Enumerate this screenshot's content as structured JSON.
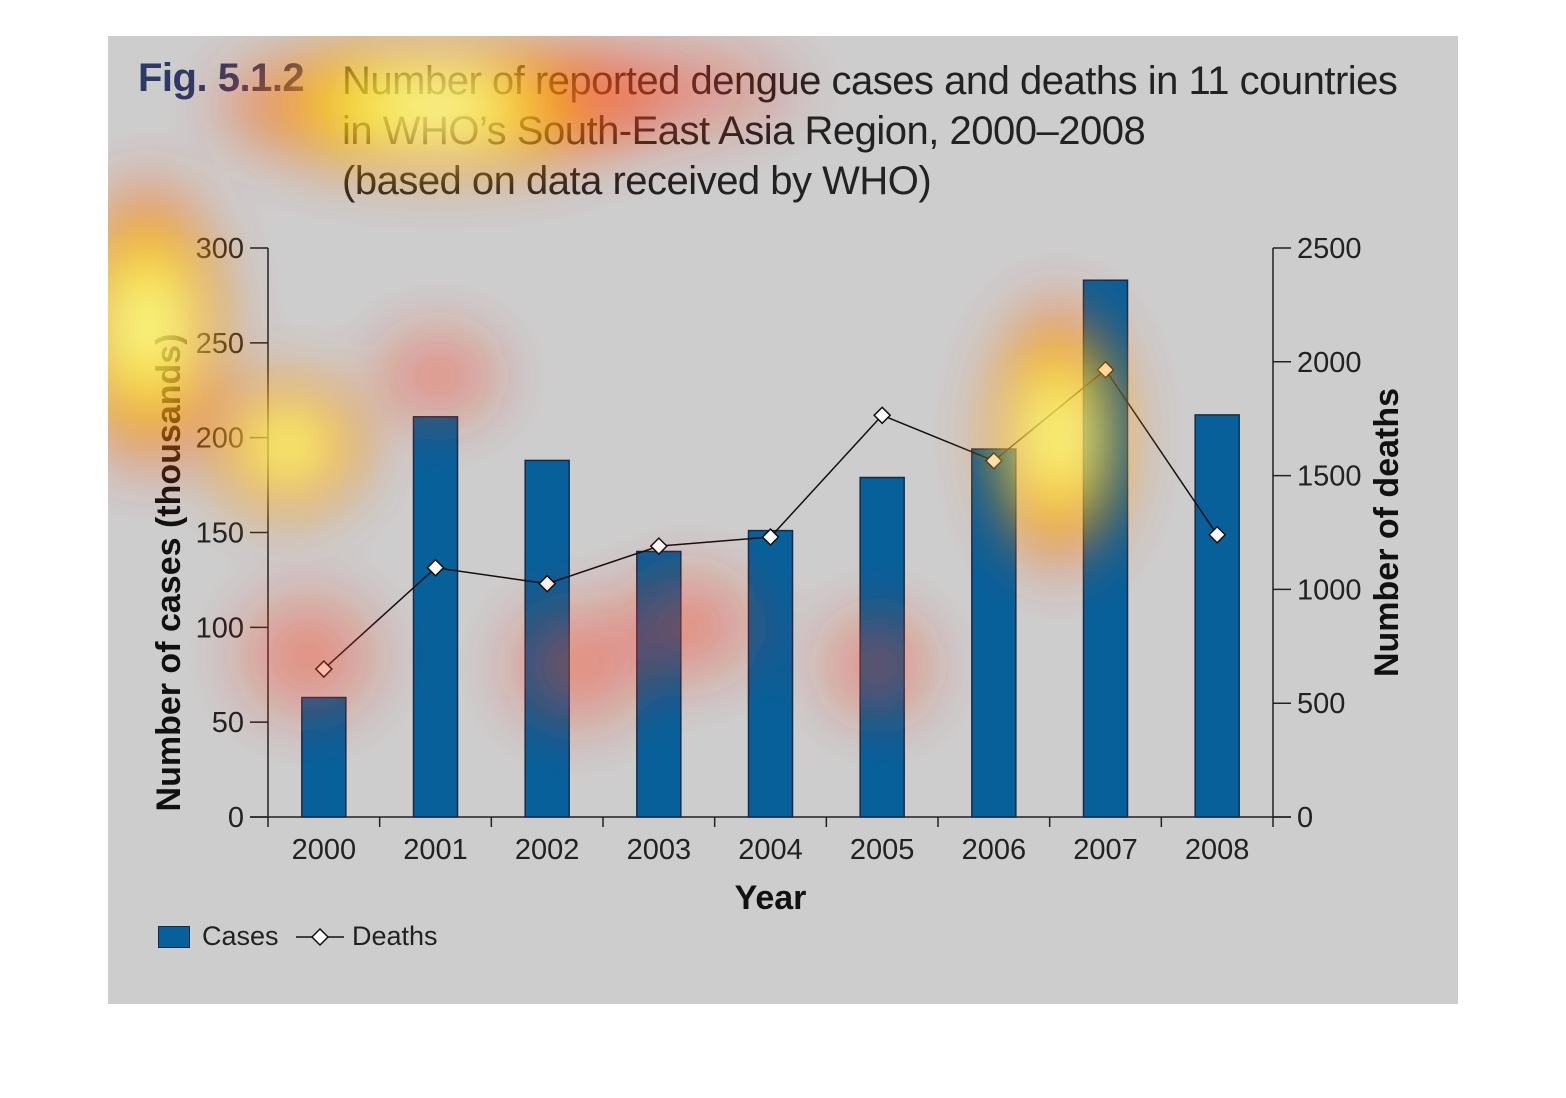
{
  "figure": {
    "label": "Fig. 5.1.2",
    "title_lines": [
      "Number of reported dengue cases and deaths in 11 countries",
      "in WHO’s South-East Asia Region, 2000–2008",
      "(based on data received by WHO)"
    ]
  },
  "colors": {
    "background": "#cdcdcd",
    "bar": "#07609a",
    "bar_stroke": "#1a2a44",
    "line": "#111111",
    "marker_fill": "#ffffff"
  },
  "chart_data": {
    "type": "bar",
    "title": "Number of reported dengue cases and deaths in 11 countries in WHO’s South-East Asia Region, 2000–2008 (based on data received by WHO)",
    "xlabel": "Year",
    "ylabel": "Number of cases (thousands)",
    "y2label": "Number of deaths",
    "categories": [
      "2000",
      "2001",
      "2002",
      "2003",
      "2004",
      "2005",
      "2006",
      "2007",
      "2008"
    ],
    "ylim": [
      0,
      300
    ],
    "yticks": [
      0,
      50,
      100,
      150,
      200,
      250,
      300
    ],
    "y2lim": [
      0,
      2500
    ],
    "y2ticks": [
      0,
      500,
      1000,
      1500,
      2000,
      2500
    ],
    "grid": false,
    "legend_position": "bottom-left",
    "series": [
      {
        "name": "Cases",
        "type": "bar",
        "axis": "left",
        "values": [
          63,
          211,
          188,
          140,
          151,
          179,
          194,
          283,
          212
        ]
      },
      {
        "name": "Deaths",
        "type": "line",
        "marker": "diamond",
        "axis": "right",
        "values": [
          650,
          1095,
          1025,
          1190,
          1230,
          1765,
          1565,
          1965,
          1240
        ]
      }
    ]
  }
}
